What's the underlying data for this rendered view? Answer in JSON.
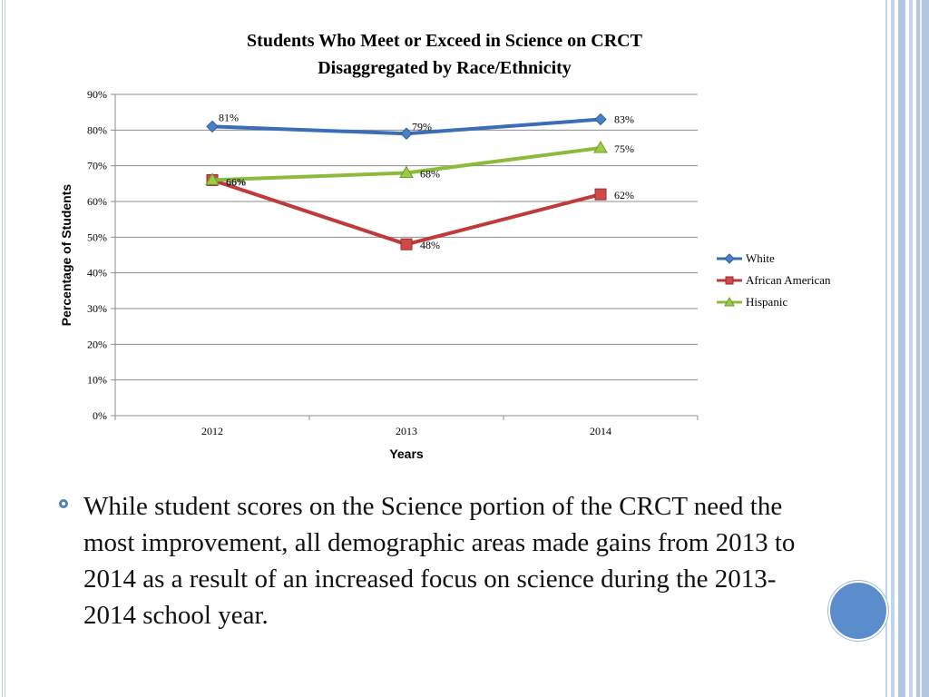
{
  "chart_data": {
    "type": "line",
    "title": "Students Who Meet or Exceed in Science on CRCT",
    "subtitle": "Disaggregated by Race/Ethnicity",
    "xlabel": "Years",
    "ylabel": "Percentage of Students",
    "categories": [
      "2012",
      "2013",
      "2014"
    ],
    "ylim": [
      0,
      90
    ],
    "yticks": [
      0,
      10,
      20,
      30,
      40,
      50,
      60,
      70,
      80,
      90
    ],
    "ytick_labels": [
      "0%",
      "10%",
      "20%",
      "30%",
      "40%",
      "50%",
      "60%",
      "70%",
      "80%",
      "90%"
    ],
    "grid": true,
    "legend_position": "right",
    "series": [
      {
        "name": "White",
        "color": "#3a6eb6",
        "marker": "diamond",
        "values": [
          81,
          79,
          83
        ],
        "labels": [
          "81%",
          "79%",
          "83%"
        ]
      },
      {
        "name": "African American",
        "color": "#c0393b",
        "marker": "square",
        "values": [
          66,
          48,
          62
        ],
        "labels": [
          "66%",
          "48%",
          "62%"
        ]
      },
      {
        "name": "Hispanic",
        "color": "#8cbb3c",
        "marker": "triangle",
        "values": [
          66,
          68,
          75
        ],
        "labels": [
          "66%",
          "68%",
          "75%"
        ]
      }
    ]
  },
  "bullet": {
    "text": "While student scores on the Science portion of the CRCT need the most improvement, all demographic areas made gains from 2013 to 2014 as a result of an increased focus on science during the 2013-2014 school year."
  }
}
